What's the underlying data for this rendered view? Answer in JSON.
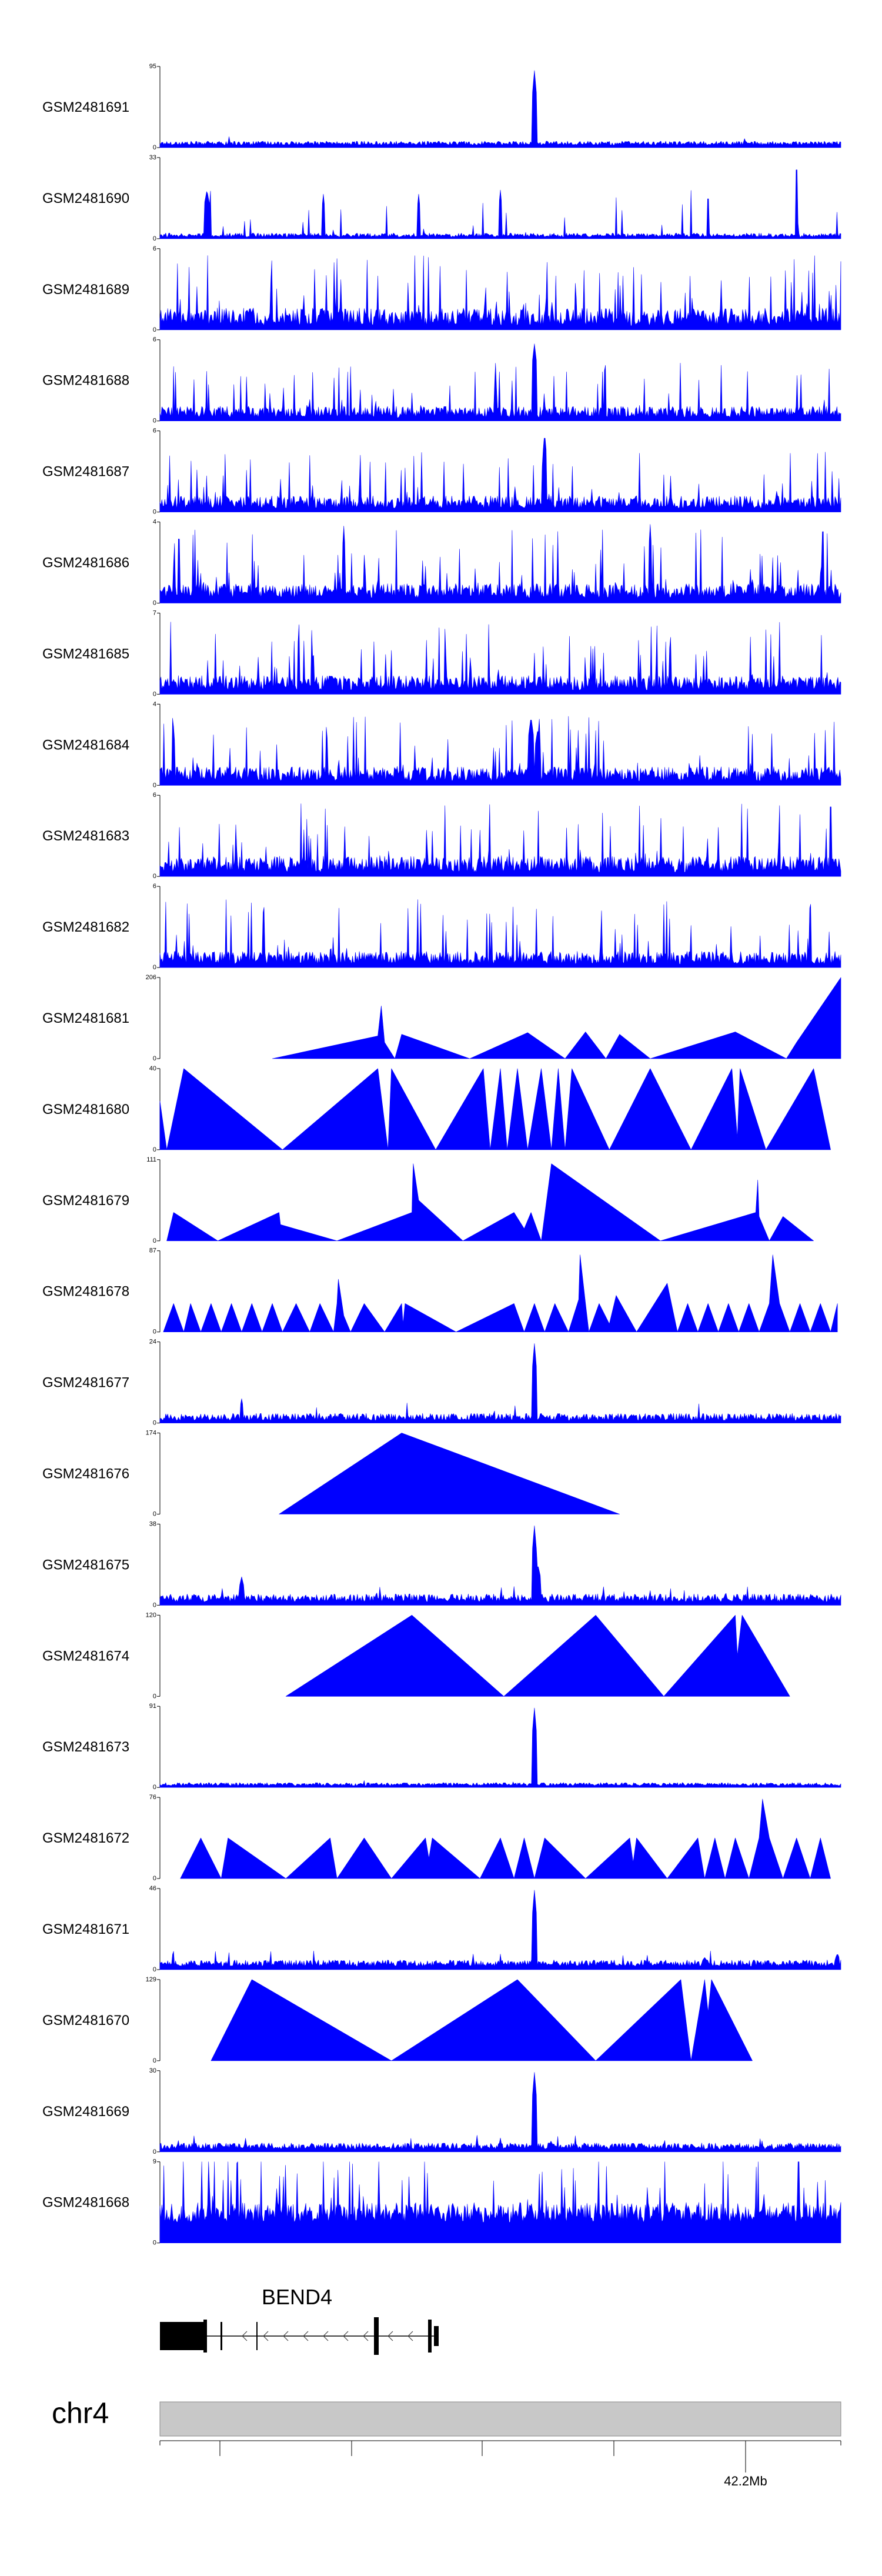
{
  "chart_data": {
    "type": "area",
    "title": "",
    "region": {
      "chromosome": "chr4",
      "labeled_position": "42.2Mb"
    },
    "gene": {
      "name": "BEND4",
      "strand": "-"
    },
    "colors": {
      "signal": "#0000ff",
      "axis": "#000000",
      "ideogram": "#c8c8c8"
    },
    "tracks": [
      {
        "name": "GSM2481691",
        "ymax": 95,
        "style": "noise",
        "base": 0.03,
        "noise": 0.05,
        "spike_rate": 0.006,
        "spike": 0.12,
        "peaks": [
          [
            0.55,
            0.95,
            0.003
          ]
        ]
      },
      {
        "name": "GSM2481690",
        "ymax": 33,
        "style": "spiky",
        "base": 0.02,
        "noise": 0.05,
        "spike_rate": 0.035,
        "spike": 0.7,
        "peaks": [
          [
            0.069,
            0.6,
            0.004
          ],
          [
            0.24,
            0.55,
            0.002
          ],
          [
            0.38,
            0.55,
            0.002
          ],
          [
            0.5,
            0.6,
            0.002
          ],
          [
            0.805,
            0.55,
            0.002
          ],
          [
            0.935,
            0.95,
            0.002
          ]
        ]
      },
      {
        "name": "GSM2481689",
        "ymax": 6,
        "style": "dense",
        "base": 0.05,
        "noise": 0.22,
        "spike_rate": 0.14,
        "spike": 0.9,
        "peaks": []
      },
      {
        "name": "GSM2481688",
        "ymax": 6,
        "style": "dense",
        "base": 0.04,
        "noise": 0.14,
        "spike_rate": 0.08,
        "spike": 0.7,
        "peaks": [
          [
            0.55,
            0.95,
            0.004
          ]
        ]
      },
      {
        "name": "GSM2481687",
        "ymax": 6,
        "style": "dense",
        "base": 0.04,
        "noise": 0.16,
        "spike_rate": 0.09,
        "spike": 0.7,
        "peaks": [
          [
            0.565,
            0.98,
            0.003
          ]
        ]
      },
      {
        "name": "GSM2481686",
        "ymax": 4,
        "style": "dense",
        "base": 0.06,
        "noise": 0.18,
        "spike_rate": 0.12,
        "spike": 0.85,
        "peaks": [
          [
            0.27,
            0.95,
            0.002
          ],
          [
            0.72,
            0.97,
            0.002
          ]
        ]
      },
      {
        "name": "GSM2481685",
        "ymax": 7,
        "style": "dense",
        "base": 0.05,
        "noise": 0.18,
        "spike_rate": 0.12,
        "spike": 0.85,
        "peaks": []
      },
      {
        "name": "GSM2481684",
        "ymax": 4,
        "style": "dense",
        "base": 0.05,
        "noise": 0.18,
        "spike_rate": 0.11,
        "spike": 0.8,
        "peaks": [
          [
            0.545,
            0.85,
            0.004
          ],
          [
            0.555,
            0.7,
            0.004
          ]
        ]
      },
      {
        "name": "GSM2481683",
        "ymax": 6,
        "style": "dense",
        "base": 0.05,
        "noise": 0.2,
        "spike_rate": 0.12,
        "spike": 0.85,
        "peaks": [
          [
            0.985,
            0.96,
            0.002
          ]
        ]
      },
      {
        "name": "GSM2481682",
        "ymax": 6,
        "style": "dense",
        "base": 0.04,
        "noise": 0.16,
        "spike_rate": 0.08,
        "spike": 0.8,
        "peaks": []
      },
      {
        "name": "GSM2481681",
        "ymax": 206,
        "style": "pts",
        "points": [
          [
            0.165,
            0
          ],
          [
            0.32,
            0.28
          ],
          [
            0.325,
            0.65
          ],
          [
            0.33,
            0.2
          ],
          [
            0.345,
            0
          ],
          [
            0.355,
            0.3
          ],
          [
            0.455,
            0
          ],
          [
            0.54,
            0.32
          ],
          [
            0.595,
            0
          ],
          [
            0.625,
            0.33
          ],
          [
            0.655,
            0
          ],
          [
            0.675,
            0.3
          ],
          [
            0.72,
            0
          ],
          [
            0.845,
            0.33
          ],
          [
            0.92,
            0
          ],
          [
            0.935,
            0.2
          ],
          [
            1.0,
            1.0
          ]
        ]
      },
      {
        "name": "GSM2481680",
        "ymax": 40,
        "style": "pts",
        "points": [
          [
            0.0,
            0.6
          ],
          [
            0.01,
            0.0
          ],
          [
            0.035,
            1.0
          ],
          [
            0.18,
            0
          ],
          [
            0.32,
            1.0
          ],
          [
            0.335,
            0
          ],
          [
            0.34,
            1.0
          ],
          [
            0.405,
            0
          ],
          [
            0.475,
            1.0
          ],
          [
            0.485,
            0
          ],
          [
            0.5,
            1.0
          ],
          [
            0.51,
            0
          ],
          [
            0.525,
            1.0
          ],
          [
            0.54,
            0
          ],
          [
            0.56,
            1.0
          ],
          [
            0.575,
            0
          ],
          [
            0.585,
            1.0
          ],
          [
            0.595,
            0
          ],
          [
            0.605,
            1.0
          ],
          [
            0.66,
            0
          ],
          [
            0.72,
            1.0
          ],
          [
            0.78,
            0
          ],
          [
            0.84,
            1.0
          ],
          [
            0.848,
            0.15
          ],
          [
            0.852,
            1.0
          ],
          [
            0.89,
            0
          ],
          [
            0.96,
            1.0
          ],
          [
            0.985,
            0
          ]
        ]
      },
      {
        "name": "GSM2481679",
        "ymax": 111,
        "style": "pts",
        "points": [
          [
            0.01,
            0
          ],
          [
            0.02,
            0.35
          ],
          [
            0.085,
            0
          ],
          [
            0.175,
            0.35
          ],
          [
            0.177,
            0.2
          ],
          [
            0.26,
            0
          ],
          [
            0.37,
            0.35
          ],
          [
            0.371,
            0.7
          ],
          [
            0.372,
            0.95
          ],
          [
            0.38,
            0.5
          ],
          [
            0.445,
            0
          ],
          [
            0.52,
            0.35
          ],
          [
            0.535,
            0.15
          ],
          [
            0.545,
            0.35
          ],
          [
            0.56,
            0
          ],
          [
            0.575,
            0.95
          ],
          [
            0.735,
            0
          ],
          [
            0.875,
            0.35
          ],
          [
            0.878,
            0.75
          ],
          [
            0.88,
            0.3
          ],
          [
            0.895,
            0
          ],
          [
            0.915,
            0.3
          ],
          [
            0.96,
            0
          ]
        ]
      },
      {
        "name": "GSM2481678",
        "ymax": 87,
        "style": "pts",
        "points": [
          [
            0.005,
            0
          ],
          [
            0.02,
            0.35
          ],
          [
            0.035,
            0
          ],
          [
            0.045,
            0.35
          ],
          [
            0.06,
            0
          ],
          [
            0.075,
            0.35
          ],
          [
            0.09,
            0
          ],
          [
            0.105,
            0.35
          ],
          [
            0.12,
            0
          ],
          [
            0.135,
            0.35
          ],
          [
            0.15,
            0
          ],
          [
            0.165,
            0.35
          ],
          [
            0.18,
            0
          ],
          [
            0.2,
            0.35
          ],
          [
            0.22,
            0
          ],
          [
            0.235,
            0.35
          ],
          [
            0.255,
            0
          ],
          [
            0.26,
            0.35
          ],
          [
            0.262,
            0.65
          ],
          [
            0.27,
            0.2
          ],
          [
            0.28,
            0
          ],
          [
            0.3,
            0.35
          ],
          [
            0.33,
            0
          ],
          [
            0.355,
            0.35
          ],
          [
            0.357,
            0.1
          ],
          [
            0.36,
            0.35
          ],
          [
            0.435,
            0
          ],
          [
            0.52,
            0.35
          ],
          [
            0.535,
            0
          ],
          [
            0.55,
            0.35
          ],
          [
            0.565,
            0
          ],
          [
            0.58,
            0.35
          ],
          [
            0.6,
            0
          ],
          [
            0.615,
            0.4
          ],
          [
            0.617,
            0.95
          ],
          [
            0.625,
            0.35
          ],
          [
            0.63,
            0
          ],
          [
            0.645,
            0.35
          ],
          [
            0.66,
            0.1
          ],
          [
            0.67,
            0.45
          ],
          [
            0.7,
            0
          ],
          [
            0.745,
            0.6
          ],
          [
            0.76,
            0
          ],
          [
            0.775,
            0.35
          ],
          [
            0.79,
            0
          ],
          [
            0.805,
            0.35
          ],
          [
            0.82,
            0
          ],
          [
            0.835,
            0.35
          ],
          [
            0.85,
            0
          ],
          [
            0.865,
            0.35
          ],
          [
            0.88,
            0
          ],
          [
            0.895,
            0.35
          ],
          [
            0.9,
            0.95
          ],
          [
            0.91,
            0.35
          ],
          [
            0.925,
            0
          ],
          [
            0.94,
            0.35
          ],
          [
            0.955,
            0
          ],
          [
            0.97,
            0.35
          ],
          [
            0.985,
            0
          ],
          [
            0.995,
            0.35
          ]
        ]
      },
      {
        "name": "GSM2481677",
        "ymax": 24,
        "style": "noise",
        "base": 0.03,
        "noise": 0.09,
        "spike_rate": 0.02,
        "spike": 0.22,
        "peaks": [
          [
            0.12,
            0.3,
            0.002
          ],
          [
            0.55,
            0.98,
            0.003
          ]
        ]
      },
      {
        "name": "GSM2481676",
        "ymax": 174,
        "style": "pts",
        "points": [
          [
            0.175,
            0
          ],
          [
            0.355,
            1.0
          ],
          [
            0.675,
            0
          ]
        ]
      },
      {
        "name": "GSM2481675",
        "ymax": 38,
        "style": "noise",
        "base": 0.04,
        "noise": 0.1,
        "spike_rate": 0.03,
        "spike": 0.2,
        "peaks": [
          [
            0.12,
            0.35,
            0.003
          ],
          [
            0.55,
            0.98,
            0.003
          ],
          [
            0.555,
            0.5,
            0.004
          ]
        ]
      },
      {
        "name": "GSM2481674",
        "ymax": 120,
        "style": "pts",
        "points": [
          [
            0.185,
            0
          ],
          [
            0.37,
            1.0
          ],
          [
            0.505,
            0
          ],
          [
            0.64,
            1.0
          ],
          [
            0.74,
            0
          ],
          [
            0.845,
            1.0
          ],
          [
            0.848,
            0.5
          ],
          [
            0.855,
            1.0
          ],
          [
            0.925,
            0
          ]
        ]
      },
      {
        "name": "GSM2481673",
        "ymax": 91,
        "style": "noise",
        "base": 0.02,
        "noise": 0.04,
        "spike_rate": 0.01,
        "spike": 0.07,
        "peaks": [
          [
            0.55,
            0.98,
            0.003
          ]
        ]
      },
      {
        "name": "GSM2481672",
        "ymax": 76,
        "style": "pts",
        "points": [
          [
            0.03,
            0
          ],
          [
            0.06,
            0.5
          ],
          [
            0.09,
            0
          ],
          [
            0.1,
            0.5
          ],
          [
            0.185,
            0
          ],
          [
            0.25,
            0.5
          ],
          [
            0.26,
            0
          ],
          [
            0.3,
            0.5
          ],
          [
            0.34,
            0
          ],
          [
            0.39,
            0.5
          ],
          [
            0.395,
            0.25
          ],
          [
            0.4,
            0.5
          ],
          [
            0.47,
            0
          ],
          [
            0.5,
            0.5
          ],
          [
            0.52,
            0
          ],
          [
            0.535,
            0.5
          ],
          [
            0.55,
            0
          ],
          [
            0.565,
            0.5
          ],
          [
            0.625,
            0
          ],
          [
            0.69,
            0.5
          ],
          [
            0.695,
            0.2
          ],
          [
            0.7,
            0.5
          ],
          [
            0.745,
            0
          ],
          [
            0.79,
            0.5
          ],
          [
            0.8,
            0
          ],
          [
            0.815,
            0.5
          ],
          [
            0.83,
            0
          ],
          [
            0.845,
            0.5
          ],
          [
            0.865,
            0
          ],
          [
            0.88,
            0.5
          ],
          [
            0.885,
            0.98
          ],
          [
            0.895,
            0.5
          ],
          [
            0.915,
            0
          ],
          [
            0.935,
            0.5
          ],
          [
            0.955,
            0
          ],
          [
            0.97,
            0.5
          ],
          [
            0.985,
            0
          ]
        ]
      },
      {
        "name": "GSM2481671",
        "ymax": 46,
        "style": "noise",
        "base": 0.04,
        "noise": 0.08,
        "spike_rate": 0.02,
        "spike": 0.2,
        "peaks": [
          [
            0.55,
            0.98,
            0.003
          ],
          [
            0.8,
            0.15,
            0.004
          ],
          [
            0.995,
            0.2,
            0.003
          ]
        ]
      },
      {
        "name": "GSM2481670",
        "ymax": 129,
        "style": "pts",
        "points": [
          [
            0.075,
            0
          ],
          [
            0.135,
            1.0
          ],
          [
            0.34,
            0
          ],
          [
            0.525,
            1.0
          ],
          [
            0.64,
            0
          ],
          [
            0.765,
            1.0
          ],
          [
            0.78,
            0
          ],
          [
            0.8,
            1.0
          ],
          [
            0.805,
            0.6
          ],
          [
            0.81,
            1.0
          ],
          [
            0.87,
            0
          ]
        ]
      },
      {
        "name": "GSM2481669",
        "ymax": 30,
        "style": "noise",
        "base": 0.03,
        "noise": 0.08,
        "spike_rate": 0.02,
        "spike": 0.18,
        "peaks": [
          [
            0.55,
            0.98,
            0.003
          ]
        ]
      },
      {
        "name": "GSM2481668",
        "ymax": 9,
        "style": "dense",
        "base": 0.25,
        "noise": 0.25,
        "spike_rate": 0.13,
        "spike": 0.95,
        "peaks": []
      }
    ]
  }
}
